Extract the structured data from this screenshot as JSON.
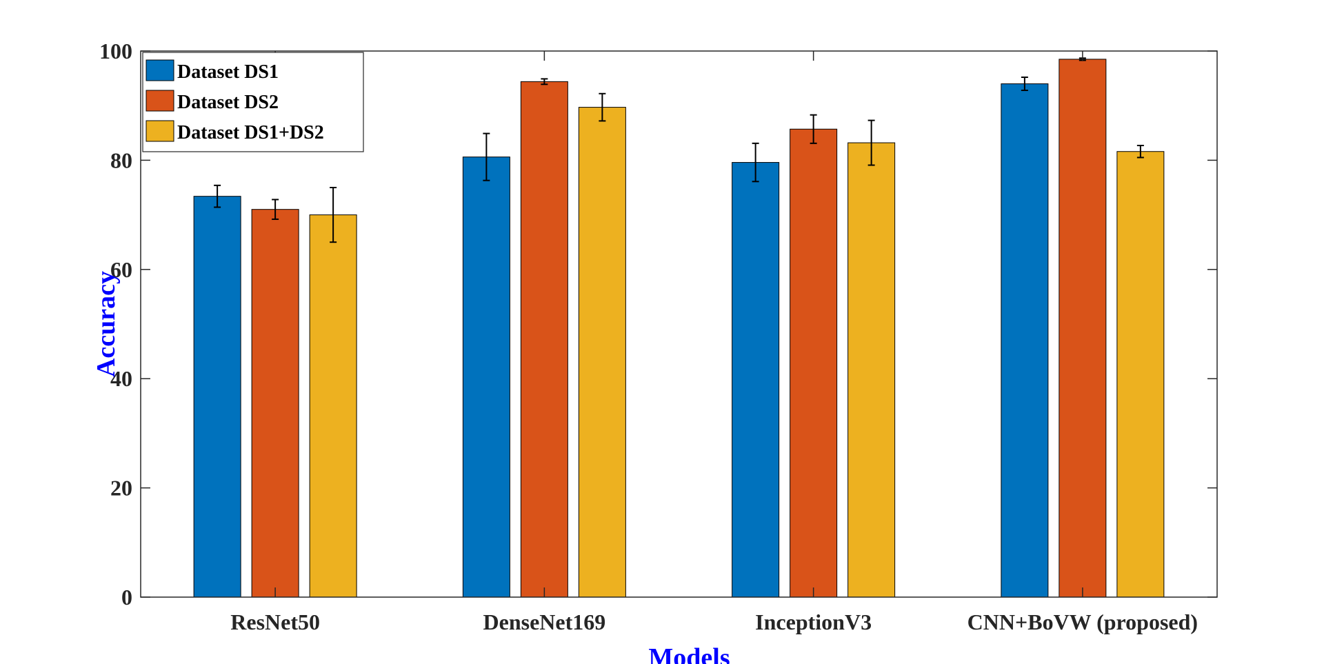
{
  "chart_data": {
    "type": "bar",
    "title": "",
    "xlabel": "Models",
    "ylabel": "Accuracy",
    "label_color": "#0000FF",
    "ylim": [
      0,
      100
    ],
    "yticks": [
      0,
      20,
      40,
      60,
      80,
      100
    ],
    "ytick_labels": [
      "0",
      "20",
      "40",
      "60",
      "80",
      "100"
    ],
    "grid": false,
    "legend_position": "top-left",
    "categories": [
      "ResNet50",
      "DenseNet169",
      "InceptionV3",
      "CNN+BoVW (proposed)"
    ],
    "series": [
      {
        "name": "Dataset DS1",
        "color": "#0072BD",
        "values": [
          73.4,
          80.6,
          79.6,
          94.0
        ],
        "errors": [
          2.0,
          4.3,
          3.5,
          1.2
        ]
      },
      {
        "name": "Dataset DS2",
        "color": "#D95319",
        "values": [
          71.0,
          94.4,
          85.7,
          98.5
        ],
        "errors": [
          1.8,
          0.5,
          2.6,
          0.2
        ]
      },
      {
        "name": "Dataset DS1+DS2",
        "color": "#EDB120",
        "values": [
          70.0,
          89.7,
          83.2,
          81.6
        ],
        "errors": [
          5.0,
          2.5,
          4.1,
          1.1
        ]
      }
    ]
  }
}
